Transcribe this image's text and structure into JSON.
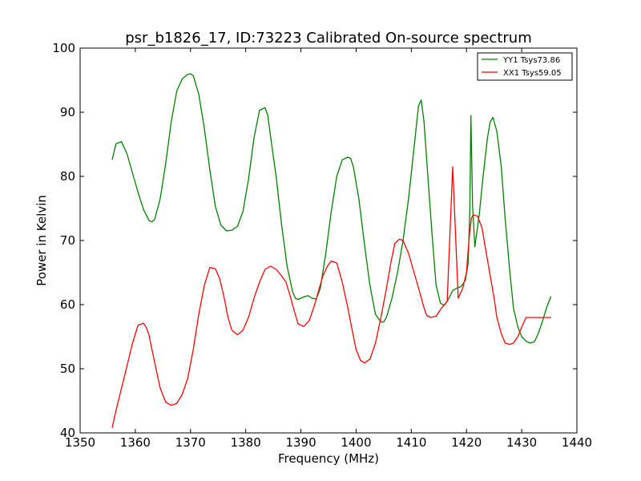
{
  "chart_data": {
    "type": "line",
    "title": "psr_b1826_17, ID:73223 Calibrated On-source spectrum",
    "xlabel": "Frequency (MHz)",
    "ylabel": "Power in Kelvin",
    "xlim": [
      1350,
      1440
    ],
    "ylim": [
      40,
      100
    ],
    "xticks": [
      "1350",
      "1360",
      "1370",
      "1380",
      "1390",
      "1400",
      "1410",
      "1420",
      "1430",
      "1440"
    ],
    "yticks": [
      "40",
      "50",
      "60",
      "70",
      "80",
      "90",
      "100"
    ],
    "grid": false,
    "legend_position": "top-right",
    "series": [
      {
        "name": "YY1 Tsys73.86",
        "color": "#008000",
        "x": [
          1355.8,
          1356.5,
          1357.5,
          1358.5,
          1359.5,
          1360.5,
          1361.5,
          1362.5,
          1363.0,
          1363.5,
          1364.5,
          1365.5,
          1366.5,
          1367.5,
          1368.5,
          1369.5,
          1370.0,
          1370.5,
          1371.5,
          1372.5,
          1373.5,
          1374.5,
          1375.5,
          1376.5,
          1377.5,
          1378.5,
          1379.5,
          1380.5,
          1381.5,
          1382.5,
          1383.5,
          1384.0,
          1384.5,
          1385.5,
          1386.5,
          1387.5,
          1388.5,
          1389.0,
          1389.5,
          1390.5,
          1391.3,
          1392.0,
          1392.8,
          1393.5,
          1394.5,
          1395.5,
          1396.5,
          1397.5,
          1398.5,
          1399.0,
          1399.5,
          1400.5,
          1401.5,
          1402.5,
          1403.5,
          1404.5,
          1405.0,
          1405.5,
          1406.5,
          1407.5,
          1408.5,
          1409.5,
          1410.5,
          1411.3,
          1411.8,
          1412.3,
          1413.0,
          1413.8,
          1414.5,
          1415.3,
          1416.0,
          1416.8,
          1417.5,
          1418.3,
          1419.0,
          1419.8,
          1420.3,
          1420.6,
          1420.8,
          1421.1,
          1421.5,
          1422.3,
          1423.0,
          1423.8,
          1424.3,
          1424.8,
          1425.5,
          1426.3,
          1427.0,
          1427.8,
          1428.5,
          1429.3,
          1430.0,
          1430.8,
          1431.5,
          1432.3,
          1433.0,
          1433.8,
          1434.5,
          1435.3
        ],
        "y": [
          82.6,
          85.1,
          85.4,
          83.5,
          80.5,
          77.5,
          74.8,
          73.1,
          72.9,
          73.3,
          76.5,
          82.0,
          88.5,
          93.3,
          95.2,
          95.9,
          96.0,
          95.7,
          92.8,
          87.5,
          81.0,
          75.3,
          72.4,
          71.5,
          71.6,
          72.2,
          74.5,
          79.5,
          86.0,
          90.3,
          90.7,
          89.5,
          86.2,
          80.0,
          72.5,
          66.0,
          62.0,
          61.0,
          60.8,
          61.2,
          61.4,
          61.0,
          60.9,
          62.5,
          68.0,
          74.5,
          80.0,
          82.6,
          83.0,
          82.8,
          81.5,
          76.5,
          69.5,
          63.0,
          58.5,
          57.3,
          57.3,
          58.0,
          61.0,
          65.0,
          70.0,
          76.5,
          84.5,
          91.0,
          91.9,
          88.5,
          80.0,
          70.5,
          63.0,
          60.2,
          59.9,
          61.0,
          62.2,
          62.6,
          62.8,
          63.8,
          66.5,
          75.0,
          89.5,
          75.5,
          69.0,
          74.0,
          80.0,
          86.0,
          88.5,
          89.2,
          87.0,
          81.5,
          73.5,
          65.5,
          59.5,
          56.5,
          55.0,
          54.3,
          54.0,
          54.2,
          55.5,
          57.5,
          59.5,
          61.3
        ]
      },
      {
        "name": "XX1 Tsys59.05",
        "color": "#ff0000",
        "x": [
          1355.8,
          1356.5,
          1357.5,
          1358.5,
          1359.5,
          1360.5,
          1361.5,
          1362.0,
          1362.5,
          1363.5,
          1364.5,
          1365.5,
          1366.5,
          1367.5,
          1368.5,
          1369.5,
          1370.5,
          1371.5,
          1372.5,
          1373.5,
          1374.5,
          1375.3,
          1376.0,
          1376.8,
          1377.5,
          1378.5,
          1379.5,
          1380.5,
          1381.5,
          1382.5,
          1383.5,
          1384.5,
          1385.5,
          1386.5,
          1387.3,
          1388.0,
          1388.8,
          1389.5,
          1390.5,
          1391.5,
          1392.5,
          1393.3,
          1394.0,
          1394.8,
          1395.5,
          1396.5,
          1397.5,
          1398.5,
          1399.3,
          1400.0,
          1400.8,
          1401.5,
          1402.5,
          1403.5,
          1404.5,
          1405.5,
          1406.3,
          1407.0,
          1407.8,
          1408.5,
          1409.5,
          1410.5,
          1411.5,
          1412.3,
          1412.8,
          1413.5,
          1414.5,
          1415.5,
          1416.5,
          1417.5,
          1418.5,
          1419.3,
          1420.0,
          1420.3,
          1420.6,
          1420.9,
          1421.2,
          1422.0,
          1422.8,
          1423.5,
          1424.3,
          1425.0,
          1425.5,
          1426.3,
          1427.0,
          1427.8,
          1428.5,
          1429.3,
          1430.0,
          1430.8,
          1431.5,
          1432.0,
          1432.8,
          1433.5,
          1434.3,
          1435.3
        ],
        "y": [
          40.8,
          43.5,
          47.0,
          50.5,
          54.0,
          56.8,
          57.1,
          56.4,
          55.2,
          51.0,
          47.0,
          44.8,
          44.3,
          44.6,
          46.0,
          48.5,
          53.0,
          58.5,
          63.0,
          65.8,
          65.6,
          64.0,
          61.5,
          58.0,
          56.0,
          55.3,
          56.0,
          58.0,
          61.0,
          63.5,
          65.5,
          66.0,
          65.5,
          64.5,
          63.5,
          61.5,
          59.0,
          57.0,
          56.6,
          57.5,
          60.0,
          62.5,
          64.5,
          66.0,
          66.8,
          66.5,
          63.5,
          59.5,
          56.0,
          53.0,
          51.3,
          50.9,
          51.5,
          54.0,
          58.0,
          62.5,
          66.5,
          69.5,
          70.2,
          70.0,
          68.0,
          65.0,
          62.0,
          59.5,
          58.3,
          58.0,
          58.2,
          59.5,
          60.5,
          81.5,
          61.0,
          62.5,
          65.0,
          68.5,
          71.5,
          73.5,
          74.0,
          73.8,
          72.0,
          68.5,
          64.5,
          61.0,
          58.0,
          55.5,
          54.0,
          53.8,
          54.0,
          55.0,
          56.5,
          58.0,
          58.0,
          58.0,
          58.0,
          58.0,
          58.0,
          58.0
        ]
      }
    ]
  }
}
